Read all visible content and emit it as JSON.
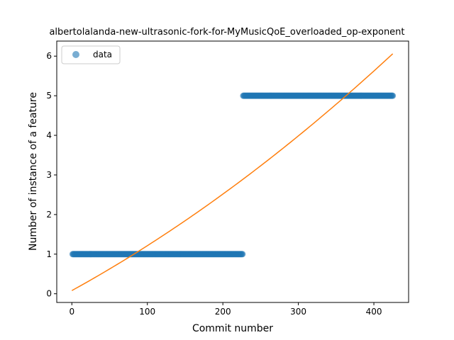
{
  "chart_data": {
    "type": "scatter",
    "title": "albertolalanda-new-ultrasonic-fork-for-MyMusicQoE_overloaded_op-exponent",
    "xlabel": "Commit number",
    "ylabel": "Number of instance of a feature",
    "xlim": [
      -20,
      446
    ],
    "ylim": [
      -0.22,
      6.38
    ],
    "xticks": [
      0,
      100,
      200,
      300,
      400
    ],
    "yticks": [
      0,
      1,
      2,
      3,
      4,
      5,
      6
    ],
    "grid": false,
    "legend_placement": "upper-left",
    "series": [
      {
        "name": "data",
        "kind": "scatter",
        "color": "#1f77b4",
        "segments": [
          {
            "x_start": 1,
            "x_end": 226,
            "y": 1
          },
          {
            "x_start": 227,
            "x_end": 425,
            "y": 5
          }
        ]
      },
      {
        "kind": "line",
        "color": "#ff7f0e",
        "fit": {
          "a": 0.08,
          "b": 0.0105,
          "c": 8.4e-06,
          "x_start": 0,
          "x_end": 425
        }
      }
    ]
  }
}
